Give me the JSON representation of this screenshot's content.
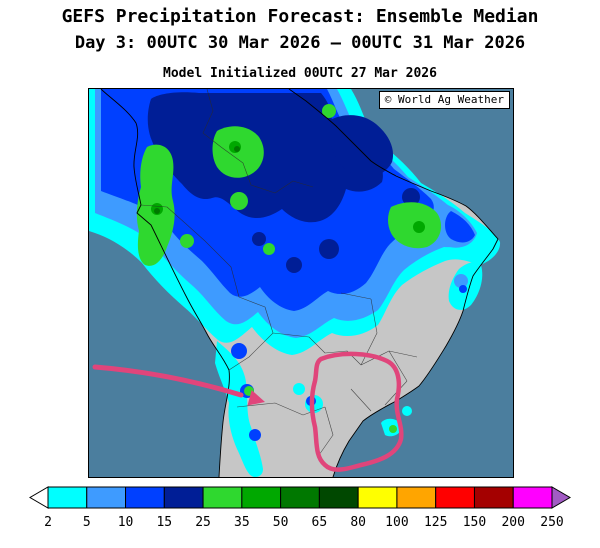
{
  "header": {
    "title": "GEFS Precipitation Forecast: Ensemble Median",
    "subtitle": "Day 3: 00UTC 30 Mar 2026 — 00UTC 31 Mar 2026",
    "init_line": "Model Initialized 00UTC 27 Mar 2026"
  },
  "map": {
    "copyright": "© World Ag Weather",
    "region": "South America",
    "annotations": {
      "arrow": "pink arrow pointing toward eastern Bolivia",
      "loop": "pink hand-drawn loop around southern Brazil dry area"
    },
    "colors": {
      "ocean": "#4B7E9E",
      "land": "#C6C6C6",
      "annotation_pink": "#E0457B"
    }
  },
  "colorbar": {
    "boundary_labels": [
      "2",
      "5",
      "10",
      "15",
      "25",
      "35",
      "50",
      "65",
      "80",
      "100",
      "125",
      "150",
      "200",
      "250"
    ],
    "segment_colors": [
      "#00FFFF",
      "#3E9BFF",
      "#0040FF",
      "#001E96",
      "#2FD82F",
      "#00A800",
      "#007800",
      "#004800",
      "#FFFF00",
      "#FFA500",
      "#FF0000",
      "#A40000",
      "#FF00FF"
    ],
    "left_tip_color": "#FFFFFF",
    "right_tip_color": "#A25BC4"
  }
}
